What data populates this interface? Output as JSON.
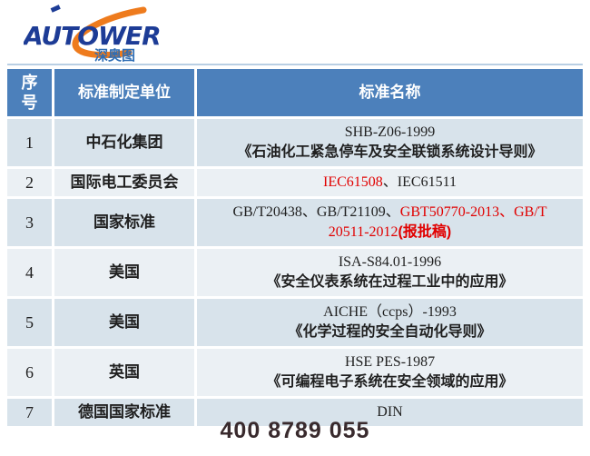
{
  "logo": {
    "brand": "AUTOWER",
    "subtitle": "深奥图",
    "brand_color": "#1d3c96",
    "swoosh_color": "#ee7b1d",
    "subtitle_color": "#2e6db4"
  },
  "table": {
    "headers": [
      "序号",
      "标准制定单位",
      "标准名称"
    ],
    "header_bg": "#4c80bb",
    "row_bg_odd": "#d8e3eb",
    "row_bg_even": "#ebf0f4",
    "red_text_color": "#e10000",
    "rows": [
      {
        "num": "1",
        "org": "中石化集团",
        "name": [
          [
            {
              "t": "SHB-Z06-1999"
            }
          ],
          [
            {
              "t": "《石油化工紧急停车及安全联锁系统设计导则》",
              "cn": true
            }
          ]
        ]
      },
      {
        "num": "2",
        "org": "国际电工委员会",
        "name": [
          [
            {
              "t": "IEC61508",
              "red": true
            },
            {
              "t": "、IEC61511"
            }
          ]
        ]
      },
      {
        "num": "3",
        "org": "国家标准",
        "name": [
          [
            {
              "t": "GB/T20438、GB/T21109、"
            },
            {
              "t": "GBT50770-2013、GB/T",
              "red": true
            }
          ],
          [
            {
              "t": "20511-2012",
              "red": true
            },
            {
              "t": "(报批稿)",
              "red": true,
              "cn": true
            }
          ]
        ]
      },
      {
        "num": "4",
        "org": "美国",
        "name": [
          [
            {
              "t": "ISA-S84.01-1996"
            }
          ],
          [
            {
              "t": "《安全仪表系统在过程工业中的应用》",
              "cn": true
            }
          ]
        ]
      },
      {
        "num": "5",
        "org": "美国",
        "name": [
          [
            {
              "t": "AICHE（ccps）-1993"
            }
          ],
          [
            {
              "t": "《化学过程的安全自动化导则》",
              "cn": true
            }
          ]
        ]
      },
      {
        "num": "6",
        "org": "英国",
        "name": [
          [
            {
              "t": "HSE PES-1987"
            }
          ],
          [
            {
              "t": "《可编程电子系统在安全领域的应用》",
              "cn": true
            }
          ]
        ]
      },
      {
        "num": "7",
        "org": "德国国家标准",
        "name": [
          [
            {
              "t": "DIN"
            }
          ]
        ]
      }
    ]
  },
  "footer": {
    "phone": "400 8789 055"
  }
}
